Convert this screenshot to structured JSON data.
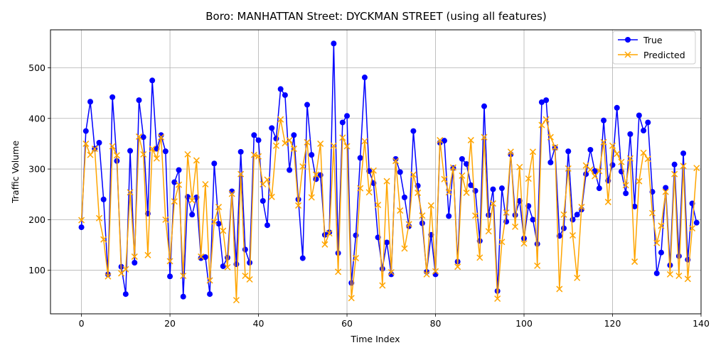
{
  "chart_data": {
    "type": "line",
    "title": "Boro: MANHATTAN Street: DYCKMAN STREET (using all features)",
    "xlabel": "Time Index",
    "ylabel": "Traffic Volume",
    "xlim": [
      -7,
      140
    ],
    "ylim": [
      14,
      575
    ],
    "xticks": [
      0,
      20,
      40,
      60,
      80,
      100,
      120,
      140
    ],
    "yticks": [
      100,
      200,
      300,
      400,
      500
    ],
    "grid": true,
    "legend_position": "top-right",
    "x": [
      0,
      1,
      2,
      3,
      4,
      5,
      6,
      7,
      8,
      9,
      10,
      11,
      12,
      13,
      14,
      15,
      16,
      17,
      18,
      19,
      20,
      21,
      22,
      23,
      24,
      25,
      26,
      27,
      28,
      29,
      30,
      31,
      32,
      33,
      34,
      35,
      36,
      37,
      38,
      39,
      40,
      41,
      42,
      43,
      44,
      45,
      46,
      47,
      48,
      49,
      50,
      51,
      52,
      53,
      54,
      55,
      56,
      57,
      58,
      59,
      60,
      61,
      62,
      63,
      64,
      65,
      66,
      67,
      68,
      69,
      70,
      71,
      72,
      73,
      74,
      75,
      76,
      77,
      78,
      79,
      80,
      81,
      82,
      83,
      84,
      85,
      86,
      87,
      88,
      89,
      90,
      91,
      92,
      93,
      94,
      95,
      96,
      97,
      98,
      99,
      100,
      101,
      102,
      103,
      104,
      105,
      106,
      107,
      108,
      109,
      110,
      111,
      112,
      113,
      114,
      115,
      116,
      117,
      118,
      119,
      120,
      121,
      122,
      123,
      124,
      125,
      126,
      127,
      128,
      129,
      130,
      131,
      132,
      133,
      134,
      135,
      136,
      137,
      138,
      139
    ],
    "series": [
      {
        "name": "True",
        "color": "#0000ff",
        "marker": "circle",
        "values": [
          185,
          375,
          433,
          340,
          352,
          240,
          92,
          442,
          316,
          107,
          53,
          336,
          115,
          436,
          363,
          212,
          475,
          340,
          367,
          335,
          88,
          274,
          298,
          48,
          245,
          210,
          244,
          124,
          126,
          53,
          311,
          192,
          108,
          125,
          256,
          112,
          334,
          141,
          115,
          367,
          357,
          237,
          189,
          381,
          360,
          458,
          446,
          298,
          367,
          240,
          124,
          427,
          328,
          280,
          288,
          170,
          175,
          548,
          134,
          392,
          405,
          75,
          169,
          322,
          481,
          296,
          272,
          165,
          103,
          155,
          92,
          320,
          294,
          244,
          187,
          375,
          267,
          193,
          97,
          170,
          92,
          352,
          356,
          207,
          302,
          117,
          320,
          310,
          268,
          257,
          158,
          424,
          209,
          260,
          59,
          262,
          196,
          329,
          209,
          237,
          163,
          227,
          200,
          152,
          432,
          436,
          313,
          342,
          168,
          183,
          335,
          200,
          210,
          220,
          290,
          338,
          296,
          262,
          396,
          277,
          308,
          421,
          295,
          252,
          369,
          226,
          406,
          376,
          392,
          255,
          94,
          135,
          263,
          110,
          309,
          128,
          331,
          121,
          232,
          194
        ]
      },
      {
        "name": "Predicted",
        "color": "#ffa500",
        "marker": "x",
        "values": [
          199,
          350,
          328,
          340,
          203,
          161,
          88,
          345,
          327,
          94,
          102,
          254,
          127,
          364,
          329,
          130,
          340,
          321,
          363,
          200,
          118,
          236,
          269,
          89,
          329,
          238,
          317,
          127,
          270,
          80,
          196,
          225,
          178,
          106,
          251,
          41,
          290,
          89,
          82,
          328,
          325,
          270,
          279,
          245,
          346,
          398,
          351,
          357,
          340,
          228,
          305,
          353,
          244,
          289,
          350,
          151,
          173,
          346,
          97,
          362,
          345,
          45,
          124,
          262,
          355,
          254,
          297,
          229,
          70,
          276,
          96,
          316,
          218,
          143,
          191,
          289,
          253,
          208,
          92,
          228,
          98,
          357,
          280,
          254,
          303,
          107,
          287,
          253,
          357,
          208,
          125,
          363,
          177,
          232,
          44,
          156,
          214,
          334,
          186,
          304,
          153,
          281,
          334,
          109,
          387,
          398,
          363,
          343,
          63,
          210,
          301,
          169,
          85,
          225,
          307,
          299,
          286,
          296,
          353,
          235,
          346,
          330,
          314,
          268,
          321,
          117,
          276,
          332,
          320,
          213,
          154,
          188,
          255,
          92,
          290,
          89,
          306,
          83,
          183,
          302
        ]
      }
    ]
  }
}
